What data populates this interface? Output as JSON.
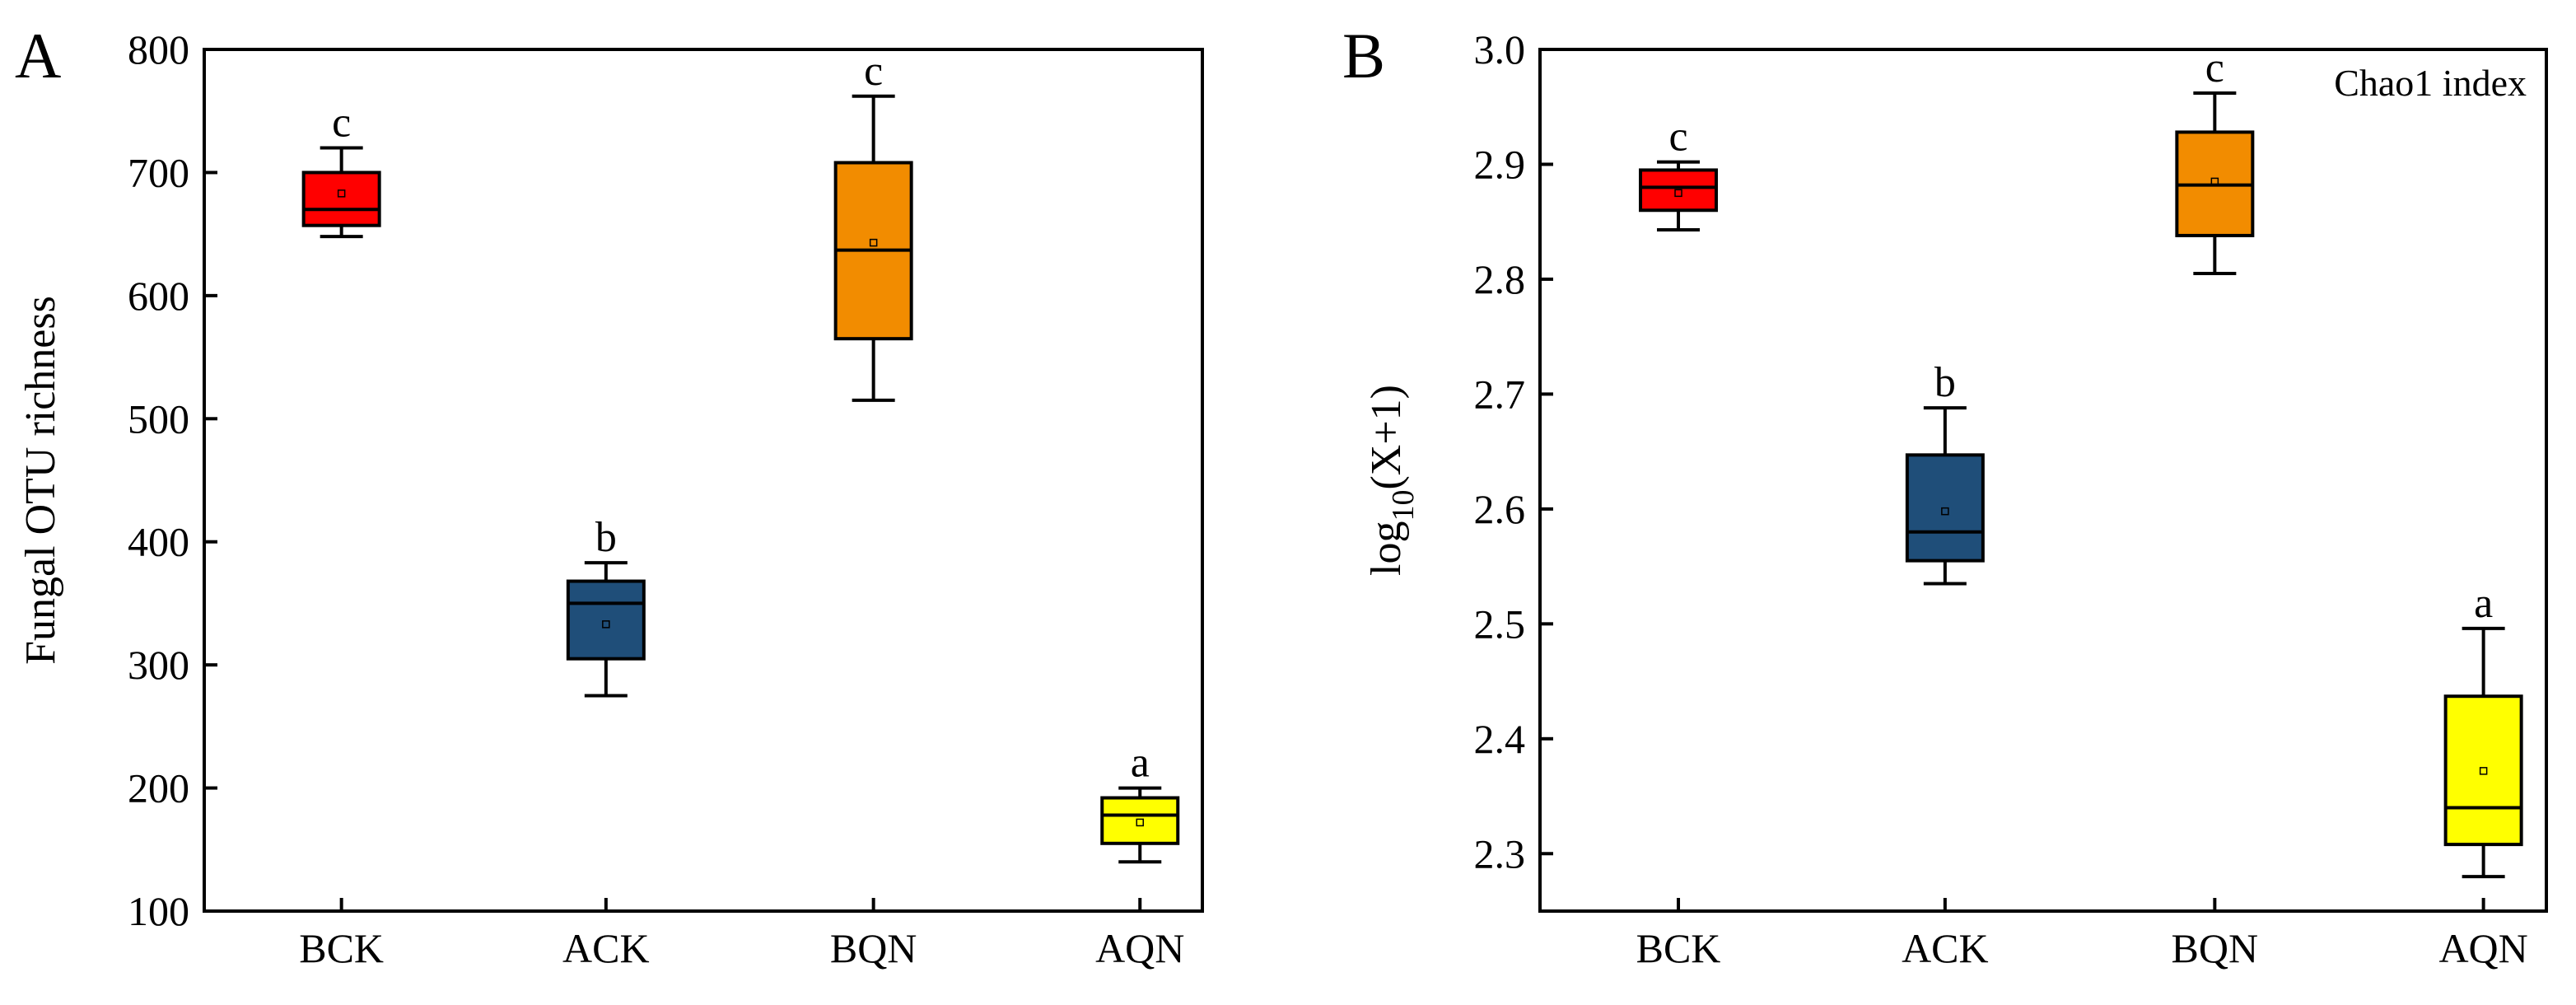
{
  "panels": [
    {
      "letter": "A"
    },
    {
      "letter": "B",
      "annotation": "Chao1 index"
    }
  ],
  "chart_data": [
    {
      "type": "box",
      "categories": [
        "BCK",
        "ACK",
        "BQN",
        "AQN"
      ],
      "xlabel": "",
      "ylabel": "Fungal OTU richness",
      "ylim": [
        100,
        800
      ],
      "yticks": [
        100,
        200,
        300,
        400,
        500,
        600,
        700,
        800
      ],
      "grid": false,
      "legend": "none",
      "boxes": [
        {
          "category": "BCK",
          "whisker_low": 648,
          "q1": 657,
          "median": 670,
          "q3": 700,
          "whisker_high": 720,
          "mean": 683,
          "color": "#ff0000",
          "sig": "c"
        },
        {
          "category": "ACK",
          "whisker_low": 275,
          "q1": 305,
          "median": 350,
          "q3": 368,
          "whisker_high": 383,
          "mean": 333,
          "color": "#1f4e79",
          "sig": "b"
        },
        {
          "category": "BQN",
          "whisker_low": 515,
          "q1": 565,
          "median": 637,
          "q3": 708,
          "whisker_high": 762,
          "mean": 643,
          "color": "#f28c00",
          "sig": "c"
        },
        {
          "category": "AQN",
          "whisker_low": 140,
          "q1": 155,
          "median": 178,
          "q3": 192,
          "whisker_high": 200,
          "mean": 172,
          "color": "#ffff00",
          "sig": "a"
        }
      ]
    },
    {
      "type": "box",
      "categories": [
        "BCK",
        "ACK",
        "BQN",
        "AQN"
      ],
      "xlabel": "",
      "ylabel": "log10(X+1)",
      "ylabel_parts": [
        "log",
        "10",
        "(X+1)"
      ],
      "ylim": [
        2.25,
        3.0
      ],
      "yticks": [
        2.3,
        2.4,
        2.5,
        2.6,
        2.7,
        2.8,
        2.9,
        3.0
      ],
      "ytick_decimals": 1,
      "grid": false,
      "legend": "none",
      "boxes": [
        {
          "category": "BCK",
          "whisker_low": 2.843,
          "q1": 2.86,
          "median": 2.88,
          "q3": 2.895,
          "whisker_high": 2.902,
          "mean": 2.875,
          "color": "#ff0000",
          "sig": "c"
        },
        {
          "category": "ACK",
          "whisker_low": 2.535,
          "q1": 2.555,
          "median": 2.58,
          "q3": 2.647,
          "whisker_high": 2.688,
          "mean": 2.598,
          "color": "#1f4e79",
          "sig": "b"
        },
        {
          "category": "BQN",
          "whisker_low": 2.805,
          "q1": 2.838,
          "median": 2.882,
          "q3": 2.928,
          "whisker_high": 2.962,
          "mean": 2.885,
          "color": "#f28c00",
          "sig": "c"
        },
        {
          "category": "AQN",
          "whisker_low": 2.28,
          "q1": 2.308,
          "median": 2.34,
          "q3": 2.437,
          "whisker_high": 2.496,
          "mean": 2.372,
          "color": "#ffff00",
          "sig": "a"
        }
      ]
    }
  ]
}
